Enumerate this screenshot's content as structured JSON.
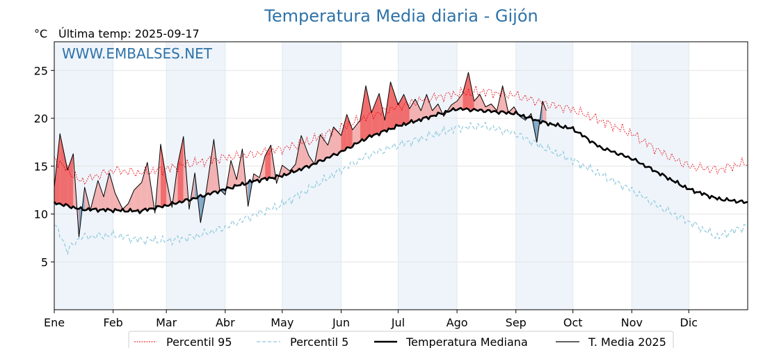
{
  "colors": {
    "title": "#2e72a8",
    "p95": "#e8000b",
    "p5": "#8fc8dc",
    "median": "#000000",
    "current": "#000000",
    "above_fill": "#f2a6a6",
    "above_fill_strong": "#ee5555",
    "below_fill": "#6f9bc0",
    "month_band": "#eef4fa",
    "watermark": "#2e72a8"
  },
  "chart_data": {
    "type": "line",
    "title": "Temperatura Media diaria - Gijón",
    "unit_label": "°C",
    "last_temp_label": "Última temp: 2025-09-17",
    "watermark": "WWW.EMBALSES.NET",
    "ylim": [
      0,
      28
    ],
    "yticks": [
      5,
      10,
      15,
      20,
      25
    ],
    "xlim": [
      1,
      366
    ],
    "grid": true,
    "legend_position": "bottom-center",
    "x_tick_days": [
      1,
      32,
      60,
      91,
      121,
      152,
      182,
      213,
      244,
      274,
      305,
      335
    ],
    "x_tick_labels": [
      "Ene",
      "Feb",
      "Mar",
      "Abr",
      "May",
      "Jun",
      "Jul",
      "Ago",
      "Sep",
      "Oct",
      "Nov",
      "Dic"
    ],
    "series": [
      {
        "name": "Percentil 95",
        "style": "dotted-red",
        "x": [
          1,
          15,
          32,
          46,
          60,
          74,
          91,
          105,
          121,
          135,
          152,
          166,
          182,
          196,
          213,
          227,
          244,
          258,
          274,
          288,
          305,
          319,
          335,
          350,
          366
        ],
        "values": [
          15.8,
          13.4,
          14.6,
          14.3,
          14.7,
          15.3,
          15.9,
          16.2,
          16.8,
          17.6,
          19.0,
          20.2,
          21.2,
          22.0,
          22.6,
          22.8,
          22.4,
          21.6,
          20.9,
          19.8,
          18.4,
          16.6,
          15.0,
          14.6,
          15.4
        ]
      },
      {
        "name": "Percentil 5",
        "style": "dashed-lightblue",
        "x": [
          1,
          8,
          15,
          32,
          46,
          60,
          74,
          91,
          105,
          121,
          135,
          152,
          166,
          182,
          196,
          213,
          227,
          244,
          258,
          274,
          288,
          305,
          319,
          335,
          350,
          366
        ],
        "values": [
          9.0,
          6.2,
          7.6,
          7.8,
          7.3,
          7.2,
          7.6,
          8.6,
          9.8,
          11.0,
          12.6,
          14.6,
          16.1,
          17.2,
          18.0,
          19.0,
          19.2,
          18.4,
          17.0,
          15.6,
          14.2,
          12.5,
          10.8,
          9.2,
          7.6,
          8.8
        ]
      },
      {
        "name": "Temperatura Mediana",
        "style": "solid-thick-black",
        "x": [
          1,
          15,
          32,
          46,
          60,
          74,
          91,
          105,
          121,
          135,
          152,
          166,
          182,
          196,
          213,
          227,
          244,
          258,
          274,
          288,
          305,
          319,
          335,
          350,
          366
        ],
        "values": [
          11.2,
          10.5,
          10.4,
          10.3,
          10.9,
          11.6,
          12.6,
          13.4,
          14.0,
          15.0,
          16.5,
          18.0,
          19.2,
          20.0,
          21.0,
          20.8,
          20.5,
          19.6,
          18.9,
          17.0,
          15.8,
          14.3,
          12.6,
          11.6,
          11.2
        ]
      },
      {
        "name": "T. Media 2025",
        "style": "solid-thin-black",
        "x": [
          1,
          4,
          8,
          11,
          14,
          17,
          20,
          24,
          27,
          30,
          33,
          37,
          40,
          43,
          47,
          50,
          54,
          57,
          60,
          63,
          66,
          69,
          72,
          75,
          78,
          81,
          85,
          88,
          91,
          94,
          97,
          100,
          103,
          106,
          109,
          112,
          115,
          118,
          121,
          125,
          128,
          131,
          135,
          138,
          141,
          145,
          148,
          152,
          155,
          158,
          162,
          165,
          168,
          172,
          175,
          178,
          182,
          185,
          188,
          191,
          194,
          197,
          200,
          203,
          206,
          210,
          213,
          216,
          219,
          222,
          225,
          228,
          231,
          234,
          237,
          240,
          243,
          246,
          249,
          252,
          255,
          258,
          260
        ],
        "values": [
          12.8,
          18.4,
          14.6,
          16.3,
          7.6,
          12.8,
          10.4,
          13.5,
          11.8,
          14.3,
          12.2,
          10.5,
          11.1,
          12.5,
          13.3,
          15.4,
          10.1,
          17.3,
          13.6,
          10.7,
          15.2,
          18.1,
          10.5,
          14.3,
          9.1,
          12.4,
          17.8,
          12.6,
          12.0,
          15.6,
          13.6,
          16.8,
          10.8,
          14.2,
          13.8,
          16.1,
          17.2,
          13.2,
          15.1,
          14.5,
          15.2,
          18.2,
          16.1,
          15.2,
          18.3,
          17.2,
          19.1,
          18.2,
          20.4,
          18.8,
          19.8,
          23.4,
          20.6,
          22.6,
          19.8,
          23.8,
          21.4,
          22.5,
          21.0,
          22.0,
          20.8,
          22.5,
          20.8,
          21.5,
          20.2,
          21.4,
          21.8,
          22.6,
          24.8,
          21.8,
          22.5,
          21.2,
          21.5,
          20.8,
          23.4,
          20.6,
          21.2,
          20.2,
          19.8,
          20.5,
          17.5,
          21.8,
          20.8
        ]
      }
    ]
  }
}
